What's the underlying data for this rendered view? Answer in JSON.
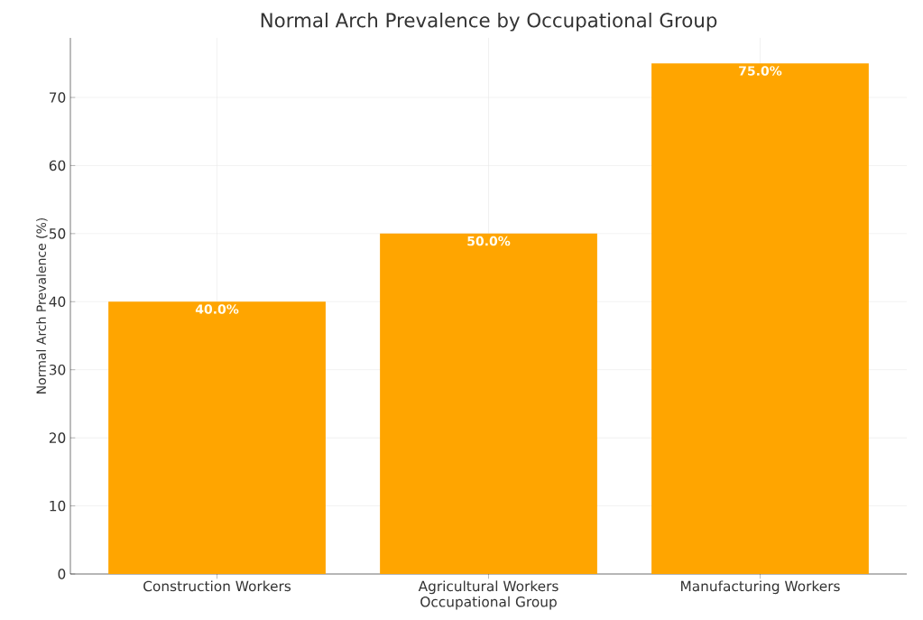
{
  "chart_data": {
    "type": "bar",
    "title": "Normal Arch Prevalence by Occupational Group",
    "xlabel": "Occupational Group",
    "ylabel": "Normal Arch Prevalence (%)",
    "categories": [
      "Construction Workers",
      "Agricultural Workers",
      "Manufacturing Workers"
    ],
    "values": [
      40,
      50,
      75
    ],
    "value_labels": [
      "40.0%",
      "50.0%",
      "75.0%"
    ],
    "color": "#ffa500",
    "ylim": [
      0,
      78.75
    ],
    "yticks": [
      0,
      10,
      20,
      30,
      40,
      50,
      60,
      70
    ],
    "grid": true
  }
}
